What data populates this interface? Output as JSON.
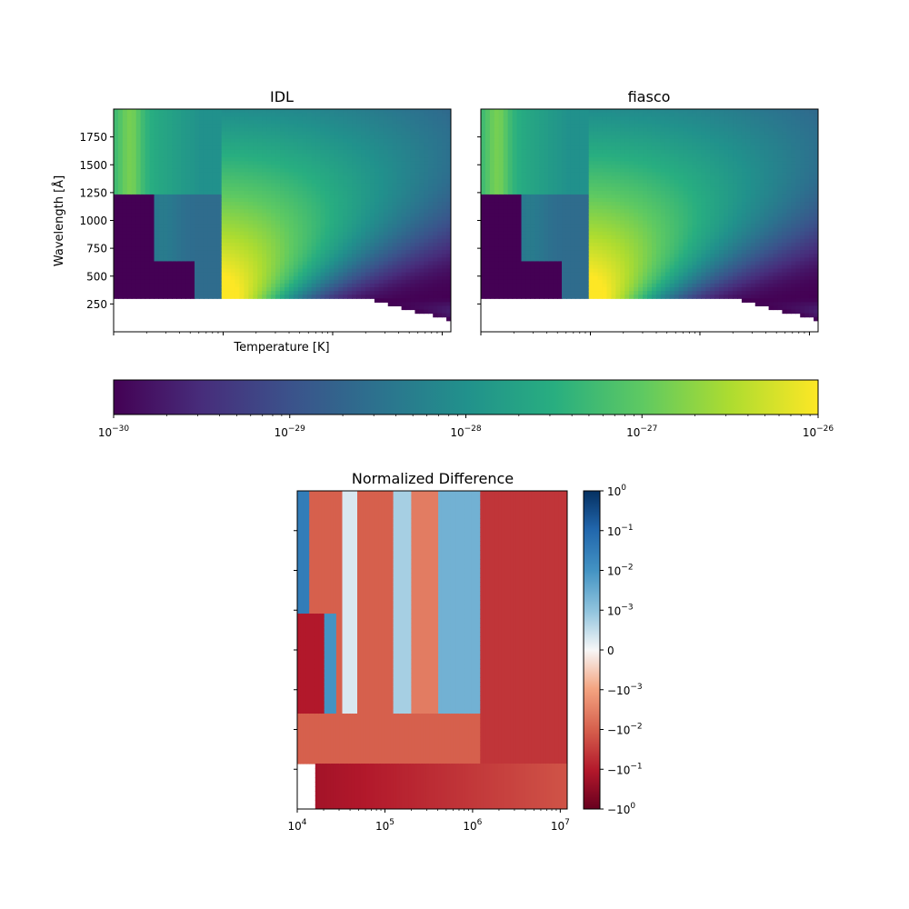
{
  "chart_data": [
    {
      "type": "heatmap",
      "title": "IDL",
      "xlabel": "Temperature [K]",
      "ylabel": "Wavelength [$\\AA$]",
      "ylabel_display": "Wavelength [Å]",
      "xscale": "log",
      "xlim": [
        10000,
        12000000
      ],
      "ylim": [
        0,
        2000
      ],
      "yticks": [
        250,
        500,
        750,
        1000,
        1250,
        1500,
        1750
      ],
      "colormap": "viridis"
    },
    {
      "type": "heatmap",
      "title": "fiasco",
      "xscale": "log",
      "xlim": [
        10000,
        12000000
      ],
      "ylim": [
        0,
        2000
      ],
      "yticks": [
        250,
        500,
        750,
        1000,
        1250,
        1500,
        1750
      ],
      "colormap": "viridis"
    },
    {
      "type": "colorbar",
      "orientation": "horizontal",
      "scale": "log",
      "range": [
        1e-30,
        1e-26
      ],
      "ticks": [
        {
          "base": "10",
          "exp": "−30"
        },
        {
          "base": "10",
          "exp": "−29"
        },
        {
          "base": "10",
          "exp": "−28"
        },
        {
          "base": "10",
          "exp": "−27"
        },
        {
          "base": "10",
          "exp": "−26"
        }
      ],
      "colormap": "viridis"
    },
    {
      "type": "heatmap",
      "title": "Normalized Difference",
      "xscale": "log",
      "xlim": [
        10000,
        12000000
      ],
      "ylim": [
        0,
        2000
      ],
      "xticks": [
        {
          "base": "10",
          "exp": "4"
        },
        {
          "base": "10",
          "exp": "5"
        },
        {
          "base": "10",
          "exp": "6"
        },
        {
          "base": "10",
          "exp": "7"
        }
      ],
      "colormap": "RdBu"
    },
    {
      "type": "colorbar",
      "orientation": "vertical",
      "scale": "symlog",
      "range": [
        -1,
        1
      ],
      "ticks": [
        {
          "sign": "",
          "base": "10",
          "exp": "0"
        },
        {
          "sign": "",
          "base": "10",
          "exp": "−1"
        },
        {
          "sign": "",
          "base": "10",
          "exp": "−2"
        },
        {
          "sign": "",
          "base": "10",
          "exp": "−3"
        },
        {
          "sign": "",
          "base": "0",
          "exp": ""
        },
        {
          "sign": "−",
          "base": "10",
          "exp": "−3"
        },
        {
          "sign": "−",
          "base": "10",
          "exp": "−2"
        },
        {
          "sign": "−",
          "base": "10",
          "exp": "−1"
        },
        {
          "sign": "−",
          "base": "10",
          "exp": "0"
        }
      ],
      "colormap": "RdBu"
    }
  ]
}
